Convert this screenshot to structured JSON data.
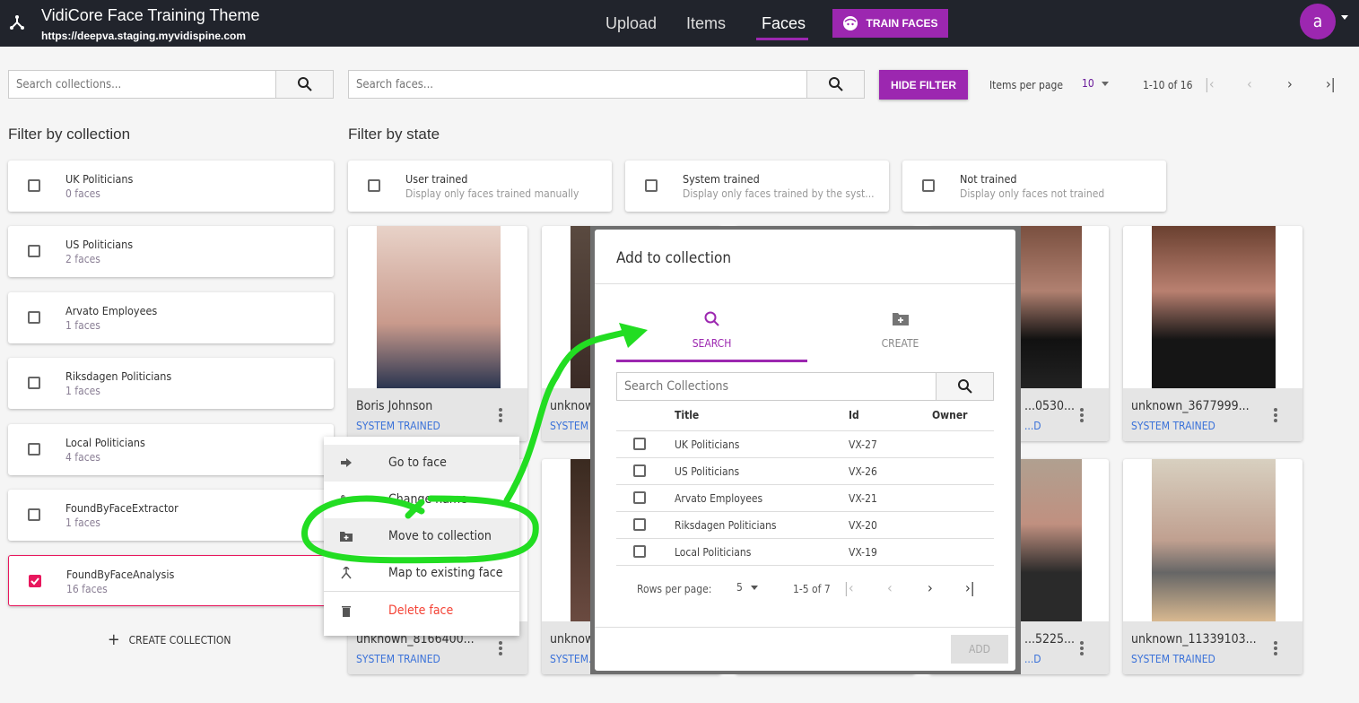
{
  "header": {
    "title": "VidiCore Face Training Theme",
    "url": "https://deepva.staging.myvidispine.com",
    "nav": [
      "Upload",
      "Items",
      "Faces"
    ],
    "active_nav": "Faces",
    "train_button": "TRAIN FACES",
    "avatar_letter": "a",
    "accent": "#9c27b0"
  },
  "toolbar": {
    "search_collections_placeholder": "Search collections...",
    "search_faces_placeholder": "Search faces...",
    "hide_filter": "HIDE FILTER",
    "items_per_page_label": "Items per page",
    "items_per_page": "10",
    "range": "1-10 of 16"
  },
  "collections": {
    "heading": "Filter by collection",
    "items": [
      {
        "name": "UK Politicians",
        "count": "0 faces",
        "checked": false
      },
      {
        "name": "US Politicians",
        "count": "2 faces",
        "checked": false
      },
      {
        "name": "Arvato Employees",
        "count": "1 faces",
        "checked": false
      },
      {
        "name": "Riksdagen Politicians",
        "count": "1 faces",
        "checked": false
      },
      {
        "name": "Local Politicians",
        "count": "4 faces",
        "checked": false
      },
      {
        "name": "FoundByFaceExtractor",
        "count": "1 faces",
        "checked": false
      },
      {
        "name": "FoundByFaceAnalysis",
        "count": "16 faces",
        "checked": true
      }
    ],
    "create": "CREATE COLLECTION"
  },
  "states": {
    "heading": "Filter by state",
    "items": [
      {
        "name": "User trained",
        "desc": "Display only faces trained manually"
      },
      {
        "name": "System trained",
        "desc": "Display only faces trained by the syst..."
      },
      {
        "name": "Not trained",
        "desc": "Display only faces not trained"
      }
    ]
  },
  "faces": [
    {
      "name": "Boris Johnson",
      "state": "SYSTEM TRAINED"
    },
    {
      "name": "unknown_...",
      "state": "SYSTEM TRAINED"
    },
    {
      "name": "",
      "state": ""
    },
    {
      "name": "...0530...",
      "state": "...D"
    },
    {
      "name": "unknown_3677999...",
      "state": "SYSTEM TRAINED"
    },
    {
      "name": "unknown_8166400...",
      "state": "SYSTEM TRAINED"
    },
    {
      "name": "unknow...",
      "state": "SYSTEM..."
    },
    {
      "name": "",
      "state": ""
    },
    {
      "name": "...5225...",
      "state": "...D"
    },
    {
      "name": "unknown_11339103...",
      "state": "SYSTEM TRAINED"
    }
  ],
  "context_menu": {
    "items": [
      {
        "label": "Go to face",
        "icon": "arrow-right-icon"
      },
      {
        "label": "Change name",
        "icon": "edit-icon"
      },
      {
        "label": "Move to collection",
        "icon": "folder-plus-icon"
      },
      {
        "label": "Map to existing face",
        "icon": "merge-icon"
      },
      {
        "label": "Delete face",
        "icon": "trash-icon",
        "color": "#f44336"
      }
    ]
  },
  "dialog": {
    "title": "Add to collection",
    "tabs": [
      {
        "label": "SEARCH",
        "active": true
      },
      {
        "label": "CREATE",
        "active": false
      }
    ],
    "search_placeholder": "Search Collections",
    "columns": [
      "Title",
      "Id",
      "Owner"
    ],
    "rows": [
      {
        "title": "UK Politicians",
        "id": "VX-27",
        "owner": ""
      },
      {
        "title": "US Politicians",
        "id": "VX-26",
        "owner": ""
      },
      {
        "title": "Arvato Employees",
        "id": "VX-21",
        "owner": ""
      },
      {
        "title": "Riksdagen Politicians",
        "id": "VX-20",
        "owner": ""
      },
      {
        "title": "Local Politicians",
        "id": "VX-19",
        "owner": ""
      }
    ],
    "rows_per_page_label": "Rows per page:",
    "rows_per_page": "5",
    "range": "1-5 of 7",
    "add_button": "ADD"
  }
}
